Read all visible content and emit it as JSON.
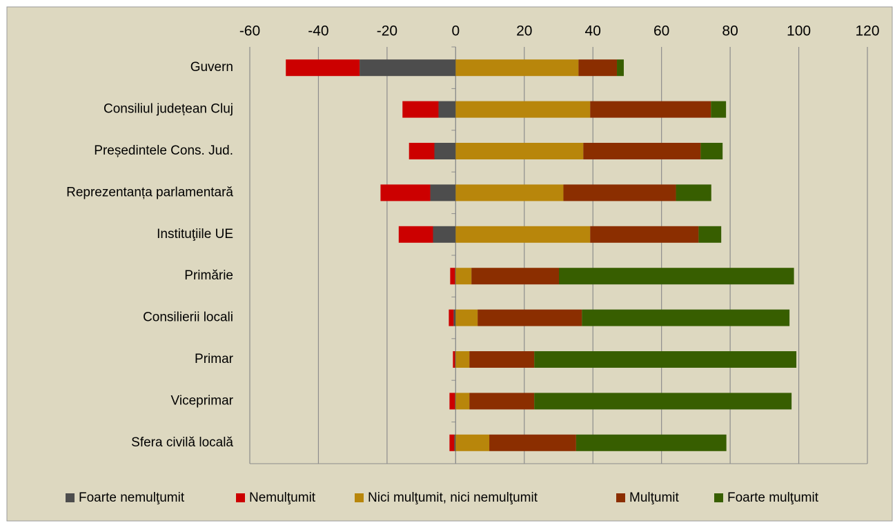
{
  "chart_data": {
    "type": "diverging_stacked_bar",
    "categories": [
      "Guvern",
      "Consiliul județean Cluj",
      "Președintele Cons. Jud.",
      "Reprezentanța parlamentară",
      "Instituţiile UE",
      "Primărie",
      "Consilierii locali",
      "Primar",
      "Viceprimar",
      "Sfera civilă locală"
    ],
    "series": [
      {
        "name": "Foarte nemulţumit",
        "color": "#4d4d4d",
        "values": [
          -28,
          -5,
          -6.2,
          -7.4,
          -6.6,
          -0.2,
          -0.6,
          -0.2,
          -0.2,
          -0.4
        ]
      },
      {
        "name": "Nemulţumit",
        "color": "#cc0000",
        "values": [
          -21.5,
          -10.5,
          -7.4,
          -14.5,
          -10,
          -1.4,
          -1.4,
          -0.6,
          -1.6,
          -1.4
        ]
      },
      {
        "name": "Nici mulţumit, nici nemulţumit",
        "color": "#b8860b",
        "values": [
          35.8,
          39.2,
          37.2,
          31.4,
          39.2,
          4.6,
          6.4,
          4,
          4,
          9.8
        ]
      },
      {
        "name": "Mulţumit",
        "color": "#8b2e00",
        "values": [
          11.2,
          35.2,
          34.2,
          32.8,
          31.6,
          25.5,
          30.4,
          18.9,
          18.9,
          25.3
        ]
      },
      {
        "name": "Foarte mulţumit",
        "color": "#375e00",
        "values": [
          2,
          4.4,
          6.4,
          10.3,
          6.6,
          68.5,
          60.5,
          76.4,
          75,
          43.8
        ]
      }
    ],
    "xlim": [
      -60,
      120
    ],
    "xticks": [
      -60,
      -40,
      -20,
      0,
      20,
      40,
      60,
      80,
      100,
      120
    ],
    "grid": true,
    "legend": "bottom"
  }
}
